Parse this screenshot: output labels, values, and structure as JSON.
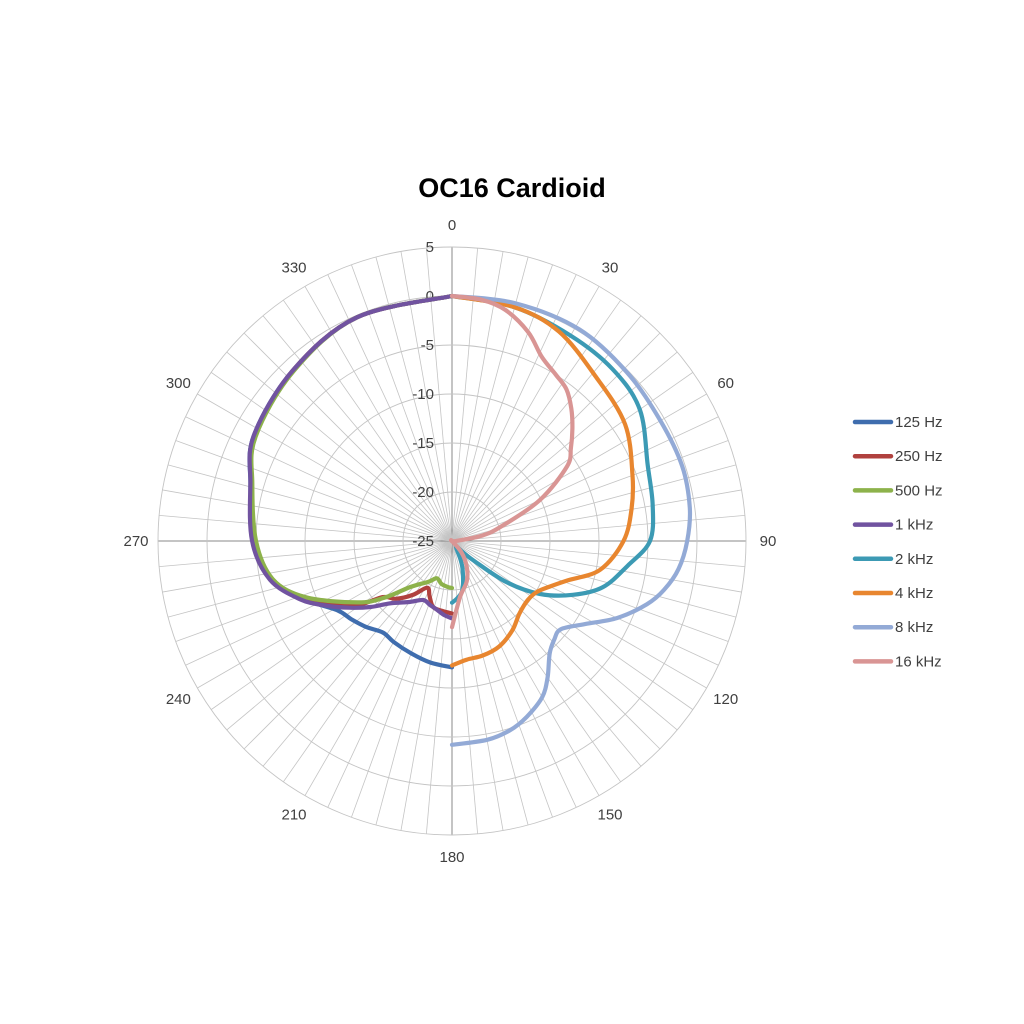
{
  "chart_data": {
    "type": "line",
    "subtype": "polar",
    "title": "OC16 Cardioid",
    "radial_axis": {
      "range": [
        -25,
        5
      ],
      "ticks": [
        5,
        0,
        -5,
        -10,
        -15,
        -20,
        -25
      ],
      "tick_labels": [
        "5",
        "0",
        "-5",
        "-10",
        "-15",
        "-20",
        "-25"
      ]
    },
    "angular_axis": {
      "range": [
        0,
        360
      ],
      "direction": "clockwise",
      "zero": "top",
      "labels": [
        "0",
        "30",
        "60",
        "90",
        "120",
        "150",
        "180",
        "210",
        "240",
        "270",
        "300",
        "330"
      ]
    },
    "grid": true,
    "legend_position": "right",
    "series": [
      {
        "name": "125 Hz",
        "color": "#3F6DAE",
        "angles": [
          180,
          190,
          200,
          210,
          217,
          225,
          232,
          239,
          249,
          258,
          270,
          286,
          298,
          317,
          337,
          360
        ],
        "values": [
          -12.1,
          -12.4,
          -12.8,
          -13.1,
          -13.3,
          -12.6,
          -12.0,
          -11.3,
          -8.6,
          -6.1,
          -4.8,
          -3.6,
          -2.1,
          -1.2,
          -0.2,
          0
        ]
      },
      {
        "name": "250 Hz",
        "color": "#B0413E",
        "angles": [
          180,
          188,
          196,
          202,
          208,
          216,
          224,
          231,
          237,
          249,
          258,
          270,
          286,
          298,
          317,
          337,
          360
        ],
        "values": [
          -17.6,
          -17.8,
          -18.0,
          -18.9,
          -19.6,
          -18.2,
          -16.8,
          -15.9,
          -13.0,
          -8.8,
          -6.2,
          -4.9,
          -3.7,
          -2.2,
          -1.2,
          -0.2,
          0
        ]
      },
      {
        "name": "500 Hz",
        "color": "#8DB24B",
        "angles": [
          180,
          186,
          194,
          202,
          210,
          222,
          230,
          237,
          249,
          258,
          270,
          286,
          298,
          317,
          337,
          360
        ],
        "values": [
          -20.2,
          -20.3,
          -20.5,
          -20.9,
          -20.2,
          -18.7,
          -16.0,
          -13.5,
          -9.0,
          -6.3,
          -5.0,
          -3.8,
          -2.3,
          -1.3,
          -0.2,
          0
        ]
      },
      {
        "name": "1 kHz",
        "color": "#7153A0",
        "angles": [
          180,
          186,
          192,
          199,
          206,
          215,
          225,
          231,
          237,
          243,
          249,
          258,
          270,
          286,
          298,
          317,
          337,
          360
        ],
        "values": [
          -17.1,
          -17.4,
          -17.8,
          -18.1,
          -18.3,
          -17.4,
          -16.0,
          -14.3,
          -12.5,
          -10.5,
          -8.4,
          -6.0,
          -4.6,
          -3.6,
          -2.1,
          -1.2,
          -0.2,
          0
        ]
      },
      {
        "name": "2 kHz",
        "color": "#3C9AB4",
        "angles": [
          0,
          15,
          30,
          43,
          55,
          69,
          80,
          90,
          98,
          107,
          114,
          121,
          127,
          132,
          136,
          145,
          155,
          160,
          168,
          174,
          180
        ],
        "values": [
          0,
          -0.3,
          -0.8,
          -1.0,
          -1.6,
          -3.6,
          -4.2,
          -4.8,
          -6.9,
          -8.9,
          -11.5,
          -14.5,
          -18.0,
          -22.0,
          -23.5,
          -24.3,
          -23.0,
          -21.8,
          -19.9,
          -19.2,
          -18.7
        ]
      },
      {
        "name": "4 kHz",
        "color": "#E8862F",
        "angles": [
          0,
          15,
          27,
          41,
          56,
          70,
          80,
          90,
          101,
          109,
          115,
          121,
          128,
          137,
          146,
          156,
          165,
          173,
          180
        ],
        "values": [
          0,
          -0.3,
          -1.0,
          -2.7,
          -3.7,
          -5.4,
          -6.4,
          -7.5,
          -9.6,
          -12.6,
          -14.0,
          -14.9,
          -15.2,
          -14.9,
          -14.0,
          -13.2,
          -12.9,
          -12.8,
          -12.3
        ]
      },
      {
        "name": "8 kHz",
        "color": "#93AAD6",
        "angles": [
          0,
          15,
          31,
          46,
          60,
          72,
          82,
          90,
          97,
          103,
          108,
          115,
          122,
          129,
          134,
          139,
          145,
          150,
          157,
          163,
          170,
          180
        ],
        "values": [
          0,
          0.1,
          0.2,
          -0.2,
          -0.45,
          -0.3,
          -0.5,
          -1.0,
          -1.7,
          -2.8,
          -4.1,
          -6.4,
          -9.0,
          -10.7,
          -10.5,
          -9.8,
          -8.0,
          -6.6,
          -5.5,
          -4.8,
          -4.4,
          -4.2
        ]
      },
      {
        "name": "16 kHz",
        "color": "#D99594",
        "angles": [
          0,
          7,
          13,
          20,
          26,
          32,
          37,
          42,
          47,
          52,
          57,
          65,
          74,
          80,
          88,
          100,
          120,
          140,
          150,
          160,
          172,
          180
        ],
        "values": [
          0,
          -0.2,
          -0.8,
          -2.3,
          -4.1,
          -5.0,
          -5.6,
          -6.8,
          -8.2,
          -9.6,
          -11.0,
          -15.1,
          -19.9,
          -22.0,
          -24.5,
          -25,
          -25,
          -23.5,
          -22.0,
          -20.6,
          -19.2,
          -16.2
        ]
      }
    ]
  }
}
